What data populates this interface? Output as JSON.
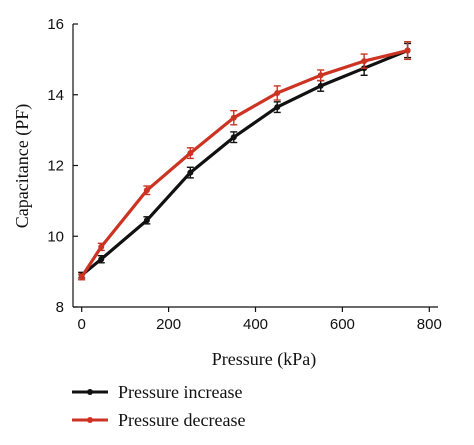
{
  "chart_data": {
    "type": "line",
    "xlabel": "Pressure (kPa)",
    "ylabel": "Capacitance (PF)",
    "xlim": [
      -20,
      820
    ],
    "ylim": [
      8,
      16
    ],
    "xticks": [
      0,
      200,
      400,
      600,
      800
    ],
    "yticks": [
      8,
      10,
      12,
      14,
      16
    ],
    "legend_position": "bottom-left",
    "grid": false,
    "series": [
      {
        "name": "Pressure increase",
        "color": "#111111",
        "x": [
          0,
          45,
          150,
          250,
          350,
          450,
          550,
          650,
          750
        ],
        "y": [
          8.9,
          9.35,
          10.45,
          11.8,
          12.8,
          13.65,
          14.25,
          14.75,
          15.25
        ],
        "err": [
          0.08,
          0.1,
          0.1,
          0.15,
          0.15,
          0.15,
          0.15,
          0.2,
          0.2
        ]
      },
      {
        "name": "Pressure decrease",
        "color": "#cc3322",
        "x": [
          0,
          45,
          150,
          250,
          350,
          450,
          550,
          650,
          750
        ],
        "y": [
          8.85,
          9.7,
          11.3,
          12.35,
          13.35,
          14.05,
          14.55,
          14.95,
          15.25
        ],
        "err": [
          0.08,
          0.1,
          0.12,
          0.15,
          0.2,
          0.2,
          0.15,
          0.2,
          0.25
        ]
      }
    ]
  }
}
